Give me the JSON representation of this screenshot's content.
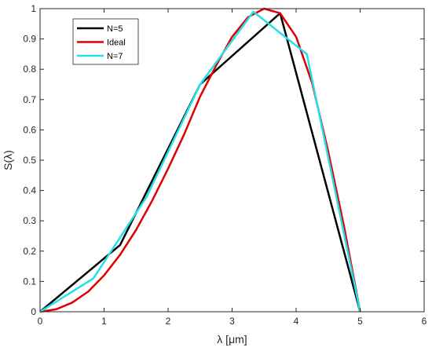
{
  "chart_data": {
    "type": "line",
    "xlabel": "λ [μm]",
    "ylabel": "S(λ)",
    "xlim": [
      0,
      6
    ],
    "ylim": [
      0,
      1
    ],
    "x_ticks": [
      "0",
      "1",
      "2",
      "3",
      "4",
      "5",
      "6"
    ],
    "y_ticks": [
      "0",
      "0.1",
      "0.2",
      "0.3",
      "0.4",
      "0.5",
      "0.6",
      "0.7",
      "0.8",
      "0.9",
      "1"
    ],
    "grid": false,
    "legend_position": "top-left",
    "series": [
      {
        "name": "N=5",
        "color": "#000000",
        "x": [
          0,
          1.25,
          2.5,
          3.75,
          5
        ],
        "y": [
          0,
          0.22,
          0.75,
          0.985,
          0
        ]
      },
      {
        "name": "Ideal",
        "color": "#e00000",
        "x": [
          0,
          0.25,
          0.5,
          0.75,
          1.0,
          1.25,
          1.5,
          1.75,
          2.0,
          2.25,
          2.5,
          2.75,
          3.0,
          3.25,
          3.5,
          3.75,
          4.0,
          4.25,
          4.5,
          4.75,
          5.0
        ],
        "y": [
          0,
          0.008,
          0.03,
          0.066,
          0.12,
          0.188,
          0.27,
          0.366,
          0.472,
          0.585,
          0.71,
          0.812,
          0.907,
          0.972,
          1.0,
          0.985,
          0.907,
          0.755,
          0.53,
          0.28,
          0
        ]
      },
      {
        "name": "N=7",
        "color": "#22e0e8",
        "x": [
          0,
          0.833,
          1.667,
          2.5,
          3.333,
          4.167,
          5
        ],
        "y": [
          0,
          0.11,
          0.38,
          0.75,
          0.99,
          0.85,
          0
        ]
      }
    ]
  }
}
